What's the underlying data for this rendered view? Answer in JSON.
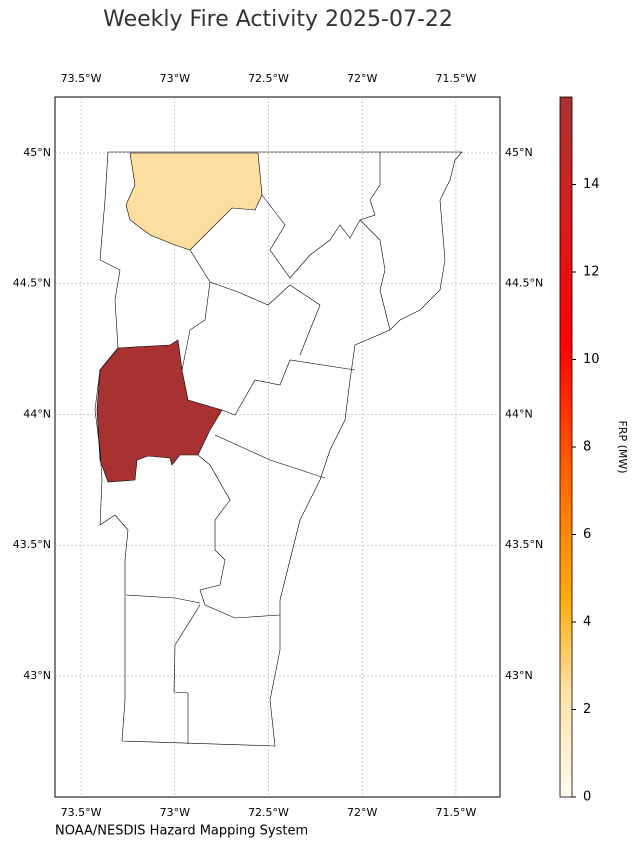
{
  "chart_data": {
    "type": "map",
    "title": "Weekly Fire Activity 2025-07-22",
    "credit": "NOAA/NESDIS Hazard Mapping System",
    "colorbar_label": "FRP (MW)",
    "xlim": [
      -73.639,
      -71.265
    ],
    "ylim": [
      42.537,
      45.214
    ],
    "xticks": [
      {
        "value": -73.5,
        "label": "73.5°W"
      },
      {
        "value": -73,
        "label": "73°W"
      },
      {
        "value": -72.5,
        "label": "72.5°W"
      },
      {
        "value": -72,
        "label": "72°W"
      },
      {
        "value": -71.5,
        "label": "71.5°W"
      }
    ],
    "yticks": [
      {
        "value": 43,
        "label": "43°N"
      },
      {
        "value": 43.5,
        "label": "43.5°N"
      },
      {
        "value": 44,
        "label": "44°N"
      },
      {
        "value": 44.5,
        "label": "44.5°N"
      },
      {
        "value": 45,
        "label": "45°N"
      }
    ],
    "clim": [
      0,
      16
    ],
    "cticks": [
      0,
      2,
      4,
      6,
      8,
      10,
      12,
      14
    ],
    "grid": true,
    "regions": [
      {
        "value": 2.5,
        "color": "#fddea0"
      },
      {
        "value": 15.9,
        "color": "#a83232"
      }
    ]
  }
}
